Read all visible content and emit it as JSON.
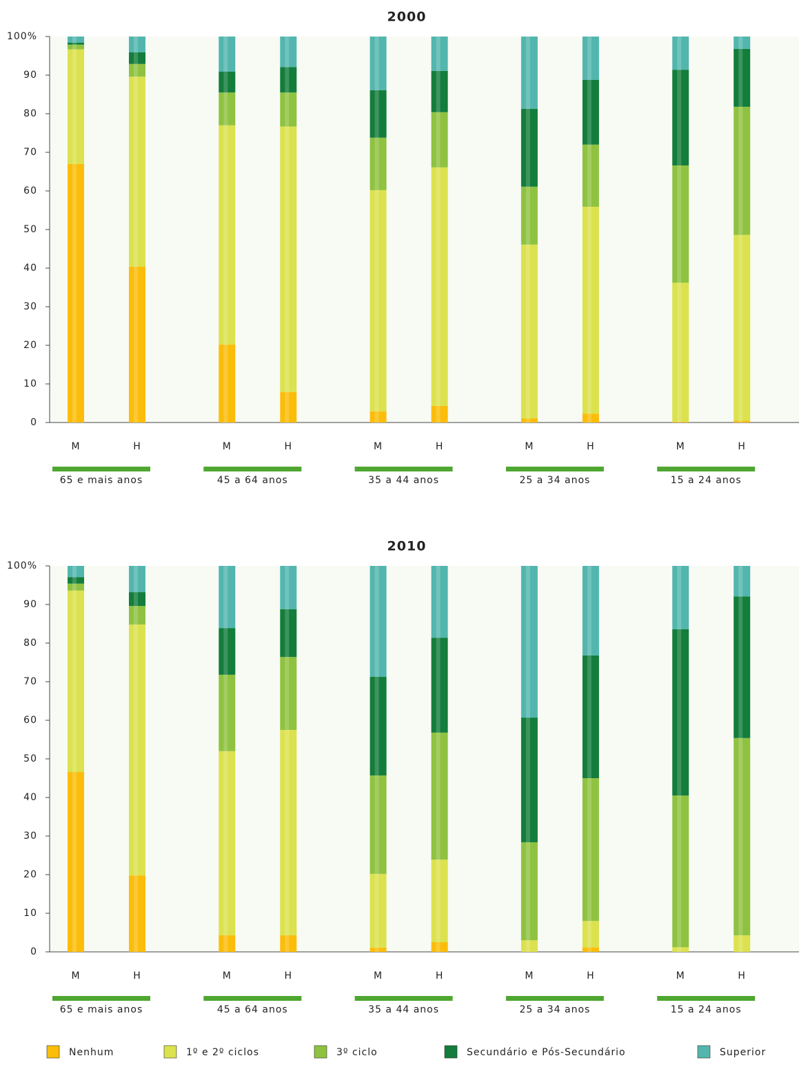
{
  "chart_data": [
    {
      "type": "stacked_bar",
      "title": "2000",
      "categories": [
        "M",
        "H",
        "M",
        "H",
        "M",
        "H",
        "M",
        "H",
        "M",
        "H"
      ],
      "groups": [
        "65 e mais anos",
        "45 a 64 anos",
        "35 a 44 anos",
        "25 a 34 anos",
        "15 a 24 anos"
      ],
      "ylim": [
        0,
        100
      ],
      "yticks": [
        0,
        10,
        20,
        30,
        40,
        50,
        60,
        70,
        80,
        90,
        {
          "value": 100,
          "label": "100%"
        }
      ],
      "series": [
        {
          "name": "Nenhum",
          "color": "#fbbd0a",
          "values": [
            67,
            40.4,
            20.2,
            7.9,
            2.9,
            4.3,
            1.1,
            2.3,
            0.2,
            0.5
          ]
        },
        {
          "name": "1º e 2º ciclos",
          "color": "#dbe24e",
          "values": [
            29.7,
            49.2,
            56.8,
            68.8,
            57.3,
            61.8,
            45,
            53.6,
            36,
            48.1
          ]
        },
        {
          "name": "3º ciclo",
          "color": "#8fc240",
          "values": [
            1.2,
            3.3,
            8.5,
            8.8,
            13.6,
            14.3,
            15,
            16.1,
            30.4,
            33.2
          ]
        },
        {
          "name": "Secundário e Pós-Secundário",
          "color": "#137d3b",
          "values": [
            0.5,
            3,
            5.4,
            6.6,
            12.3,
            10.7,
            20.2,
            16.8,
            24.8,
            15
          ]
        },
        {
          "name": "Superior",
          "color": "#52b6ae",
          "values": [
            1.6,
            4.1,
            9.1,
            7.9,
            13.9,
            8.9,
            18.7,
            11.2,
            8.6,
            3.2
          ]
        }
      ]
    },
    {
      "type": "stacked_bar",
      "title": "2010",
      "categories": [
        "M",
        "H",
        "M",
        "H",
        "M",
        "H",
        "M",
        "H",
        "M",
        "H"
      ],
      "groups": [
        "65 e mais anos",
        "45 a 64 anos",
        "35 a 44 anos",
        "25 a 34 anos",
        "15 a 24 anos"
      ],
      "ylim": [
        0,
        100
      ],
      "yticks": [
        0,
        10,
        20,
        30,
        40,
        50,
        60,
        70,
        80,
        90,
        {
          "value": 100,
          "label": "100%"
        }
      ],
      "series": [
        {
          "color": "#fbbd0a",
          "values": [
            46.6,
            19.8,
            4.3,
            4.3,
            1.1,
            2.5,
            0,
            1.2,
            0,
            0
          ]
        },
        {
          "color": "#dbe24e",
          "values": [
            47,
            65,
            47.7,
            53.2,
            19.1,
            21.4,
            3,
            6.8,
            1.2,
            4.3
          ]
        },
        {
          "color": "#8fc240",
          "values": [
            1.8,
            4.8,
            19.8,
            18.9,
            25.5,
            32.9,
            25.4,
            37,
            39.3,
            51.1
          ]
        },
        {
          "color": "#137d3b",
          "values": [
            1.7,
            3.6,
            12.1,
            12.4,
            25.6,
            24.6,
            32.3,
            31.8,
            43.1,
            36.7
          ]
        },
        {
          "color": "#52b6ae",
          "values": [
            2.9,
            6.8,
            16.1,
            11.2,
            28.7,
            18.6,
            39.3,
            23.2,
            16.4,
            7.9
          ]
        }
      ]
    }
  ]
}
